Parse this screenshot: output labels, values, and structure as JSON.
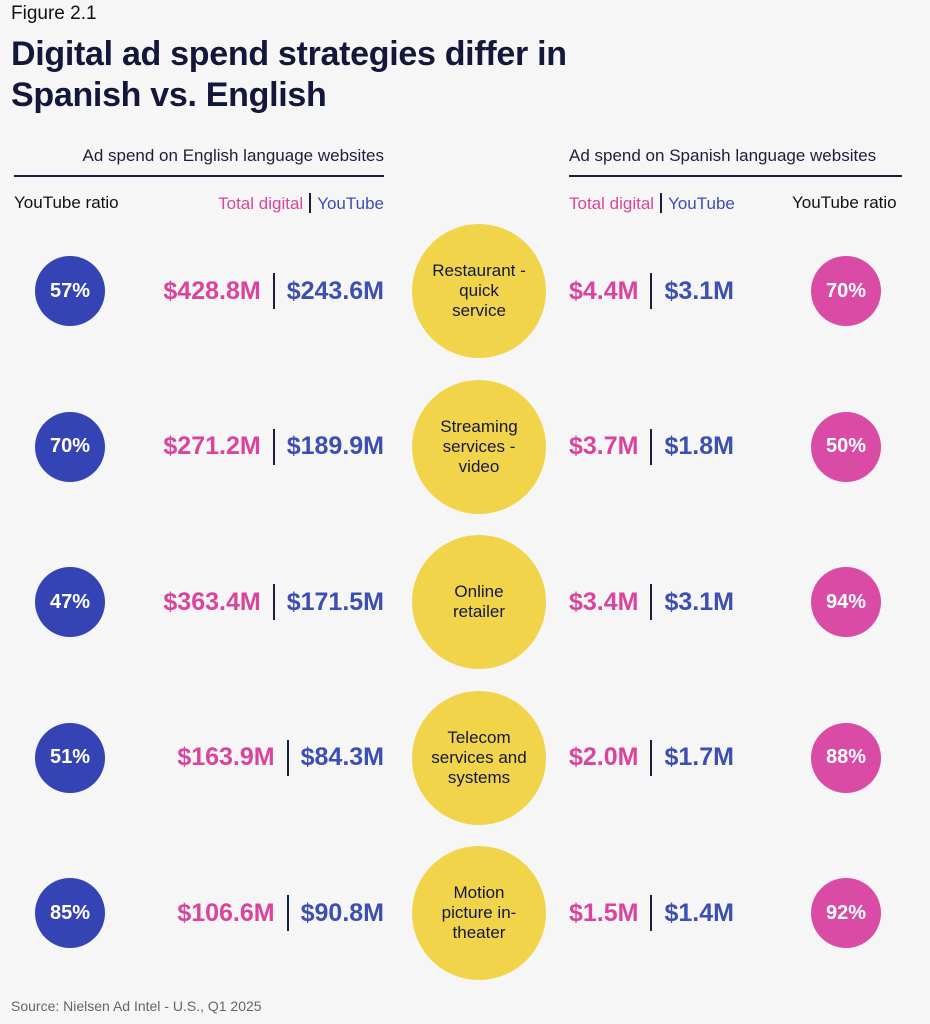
{
  "figure_label": "Figure 2.1",
  "title_line1": "Digital ad spend strategies differ in",
  "title_line2": "Spanish vs. English",
  "left_section_title": "Ad spend on English language websites",
  "right_section_title": "Ad spend on Spanish language websites",
  "col_youtube_ratio": "YouTube ratio",
  "col_total_digital": "Total digital",
  "col_youtube": "YouTube",
  "source": "Source: Nielsen Ad Intel - U.S., Q1 2025",
  "colors": {
    "english_ratio": "#3444b5",
    "spanish_ratio": "#d94ba4",
    "category": "#f1d44a",
    "total_digital": "#d9449c",
    "youtube": "#3d4fb0"
  },
  "chart_data": {
    "type": "table",
    "columns": [
      "English YouTube ratio",
      "English Total digital",
      "English YouTube",
      "Category",
      "Spanish Total digital",
      "Spanish YouTube",
      "Spanish YouTube ratio"
    ],
    "rows": [
      {
        "category": "Restaurant - quick service",
        "en_ratio": "57%",
        "en_total": "$428.8M",
        "en_youtube": "$243.6M",
        "es_total": "$4.4M",
        "es_youtube": "$3.1M",
        "es_ratio": "70%"
      },
      {
        "category": "Streaming services - video",
        "en_ratio": "70%",
        "en_total": "$271.2M",
        "en_youtube": "$189.9M",
        "es_total": "$3.7M",
        "es_youtube": "$1.8M",
        "es_ratio": "50%"
      },
      {
        "category": "Online retailer",
        "en_ratio": "47%",
        "en_total": "$363.4M",
        "en_youtube": "$171.5M",
        "es_total": "$3.4M",
        "es_youtube": "$3.1M",
        "es_ratio": "94%"
      },
      {
        "category": "Telecom services and systems",
        "en_ratio": "51%",
        "en_total": "$163.9M",
        "en_youtube": "$84.3M",
        "es_total": "$2.0M",
        "es_youtube": "$1.7M",
        "es_ratio": "88%"
      },
      {
        "category": "Motion picture in-theater",
        "en_ratio": "85%",
        "en_total": "$106.6M",
        "en_youtube": "$90.8M",
        "es_total": "$1.5M",
        "es_youtube": "$1.4M",
        "es_ratio": "92%"
      }
    ]
  }
}
